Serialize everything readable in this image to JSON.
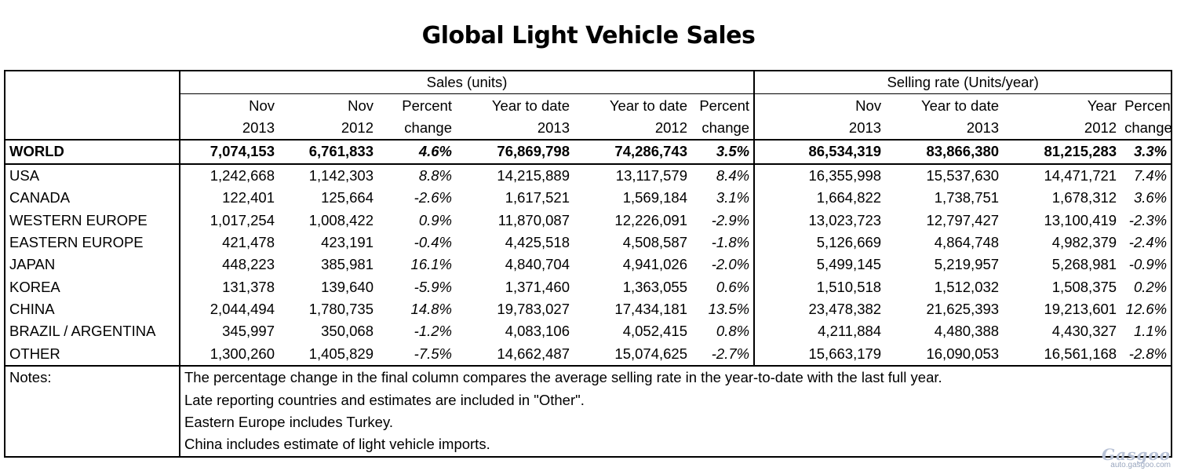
{
  "title": "Global Light Vehicle Sales",
  "header": {
    "group_sales": "Sales (units)",
    "group_rate": "Selling rate (Units/year)",
    "col_top": [
      "Nov",
      "Nov",
      "Percent",
      "Year to date",
      "Year to date",
      "Percent",
      "Nov",
      "Year to date",
      "Year",
      "Percent"
    ],
    "col_bottom": [
      "2013",
      "2012",
      "change",
      "2013",
      "2012",
      "change",
      "2013",
      "2013",
      "2012",
      "change"
    ]
  },
  "world": {
    "region": "WORLD",
    "values": [
      "7,074,153",
      "6,761,833",
      "4.6%",
      "76,869,798",
      "74,286,743",
      "3.5%",
      "86,534,319",
      "83,866,380",
      "81,215,283",
      "3.3%"
    ]
  },
  "rows": [
    {
      "region": "USA",
      "values": [
        "1,242,668",
        "1,142,303",
        "8.8%",
        "14,215,889",
        "13,117,579",
        "8.4%",
        "16,355,998",
        "15,537,630",
        "14,471,721",
        "7.4%"
      ]
    },
    {
      "region": "CANADA",
      "values": [
        "122,401",
        "125,664",
        "-2.6%",
        "1,617,521",
        "1,569,184",
        "3.1%",
        "1,664,822",
        "1,738,751",
        "1,678,312",
        "3.6%"
      ]
    },
    {
      "region": "WESTERN EUROPE",
      "values": [
        "1,017,254",
        "1,008,422",
        "0.9%",
        "11,870,087",
        "12,226,091",
        "-2.9%",
        "13,023,723",
        "12,797,427",
        "13,100,419",
        "-2.3%"
      ]
    },
    {
      "region": "EASTERN EUROPE",
      "values": [
        "421,478",
        "423,191",
        "-0.4%",
        "4,425,518",
        "4,508,587",
        "-1.8%",
        "5,126,669",
        "4,864,748",
        "4,982,379",
        "-2.4%"
      ]
    },
    {
      "region": "JAPAN",
      "values": [
        "448,223",
        "385,981",
        "16.1%",
        "4,840,704",
        "4,941,026",
        "-2.0%",
        "5,499,145",
        "5,219,957",
        "5,268,981",
        "-0.9%"
      ]
    },
    {
      "region": "KOREA",
      "values": [
        "131,378",
        "139,640",
        "-5.9%",
        "1,371,460",
        "1,363,055",
        "0.6%",
        "1,510,518",
        "1,512,032",
        "1,508,375",
        "0.2%"
      ]
    },
    {
      "region": "CHINA",
      "values": [
        "2,044,494",
        "1,780,735",
        "14.8%",
        "19,783,027",
        "17,434,181",
        "13.5%",
        "23,478,382",
        "21,625,393",
        "19,213,601",
        "12.6%"
      ]
    },
    {
      "region": "BRAZIL / ARGENTINA",
      "values": [
        "345,997",
        "350,068",
        "-1.2%",
        "4,083,106",
        "4,052,415",
        "0.8%",
        "4,211,884",
        "4,480,388",
        "4,430,327",
        "1.1%"
      ]
    },
    {
      "region": "OTHER",
      "values": [
        "1,300,260",
        "1,405,829",
        "-7.5%",
        "14,662,487",
        "15,074,625",
        "-2.7%",
        "15,663,179",
        "16,090,053",
        "16,561,168",
        "-2.8%"
      ]
    }
  ],
  "notes": {
    "label": "Notes:",
    "lines": [
      "The percentage change in the final column compares the average selling rate in the year-to-date with the last full year.",
      "Late reporting countries and estimates are included in \"Other\".",
      "Eastern Europe includes Turkey.",
      "China includes estimate of light vehicle imports."
    ]
  },
  "watermark": {
    "logo": "Gasgoo",
    "site": "auto.gasgoo.com"
  }
}
